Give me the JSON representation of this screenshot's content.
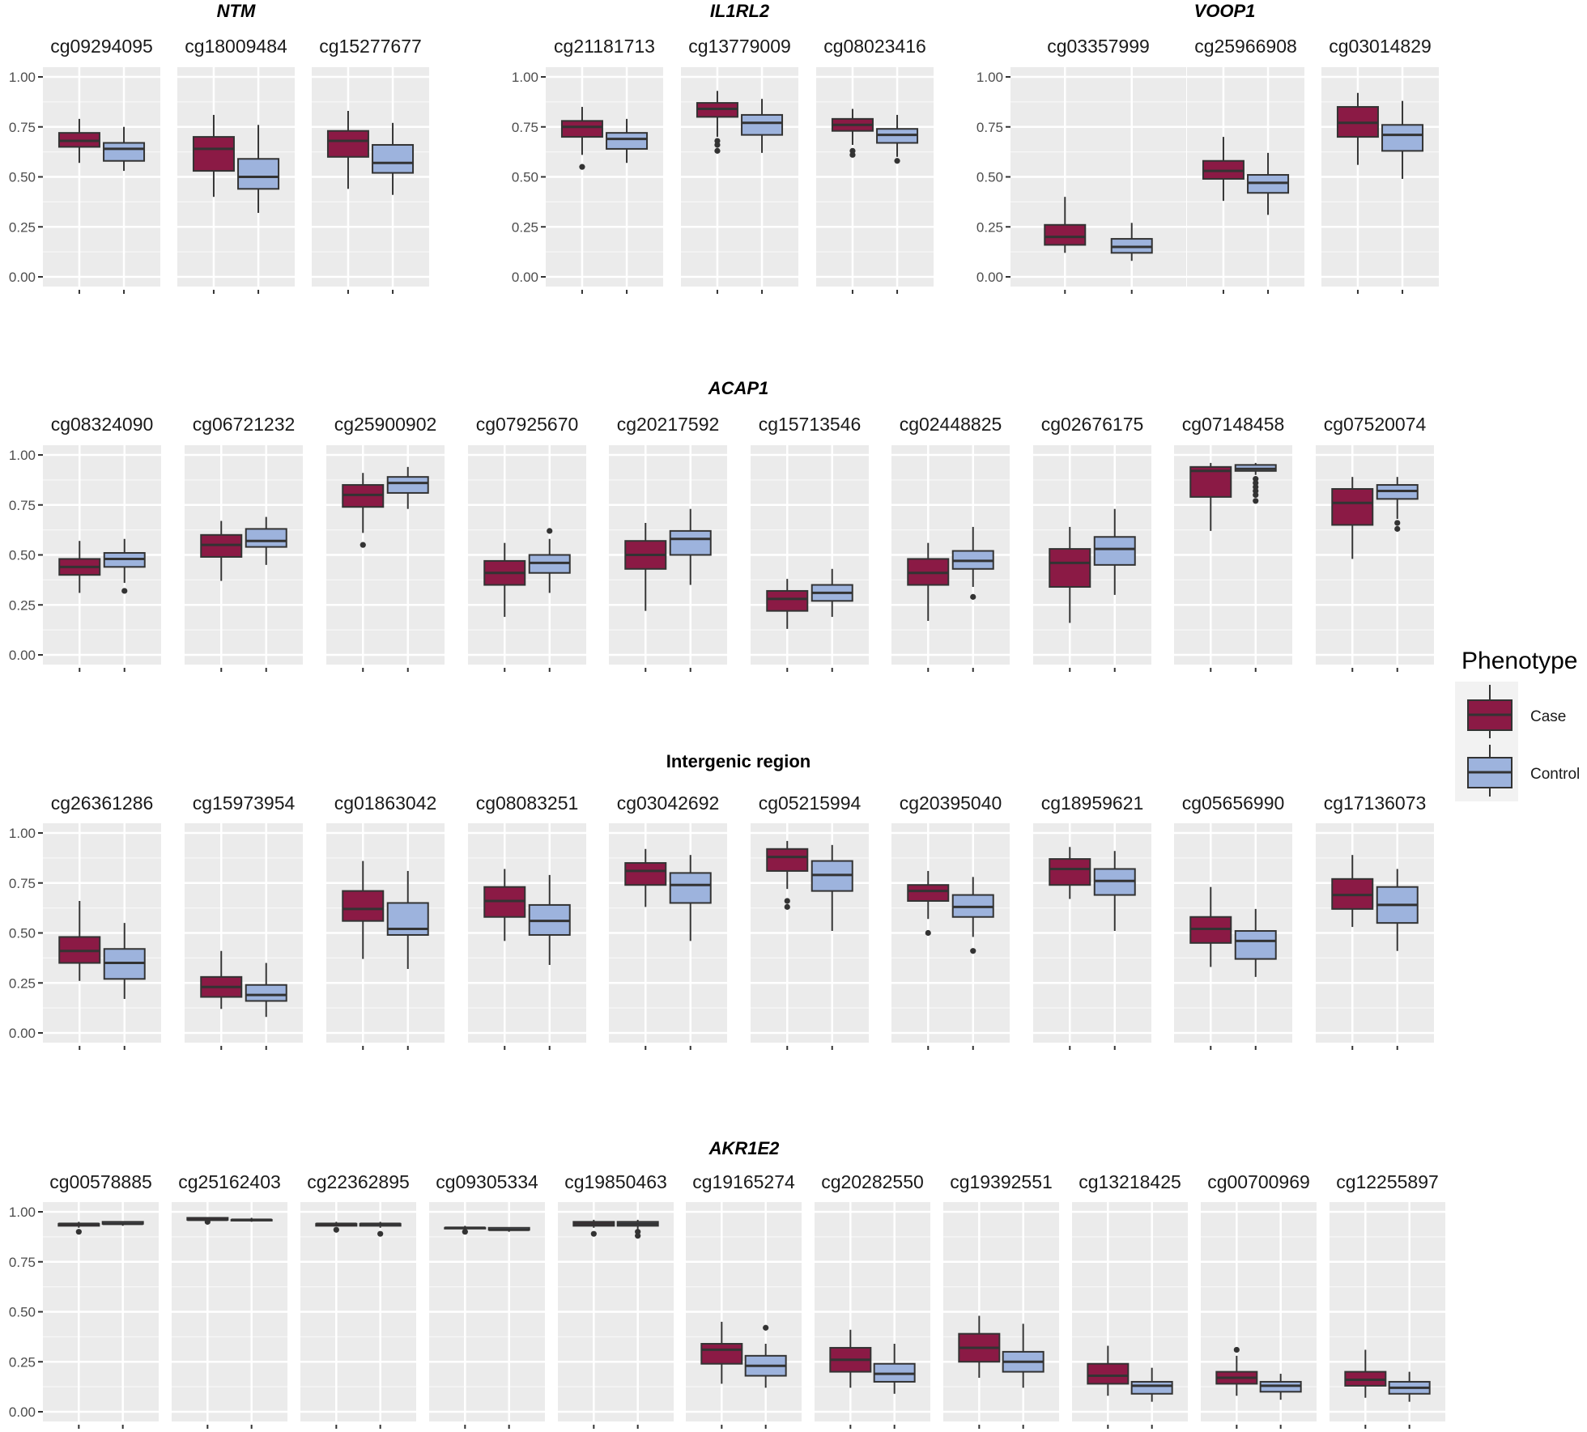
{
  "chart_data": {
    "type": "boxplot",
    "y_axis": {
      "range": [
        0,
        1
      ],
      "ticks": [
        "0.00",
        "0.25",
        "0.50",
        "0.75",
        "1.00"
      ]
    },
    "x_axis": {
      "tick_labels_shown": false
    },
    "legend": {
      "title": "Phenotype",
      "placement": "right",
      "entries": [
        {
          "label": "Case",
          "color": "#8b1a45"
        },
        {
          "label": "Control",
          "color": "#9db3dd"
        }
      ]
    },
    "groups": [
      {
        "title": "NTM",
        "italic": true,
        "panels": [
          {
            "probe": "cg09294095",
            "case": {
              "lw": 0.57,
              "q1": 0.65,
              "med": 0.68,
              "q3": 0.72,
              "uw": 0.79,
              "out": []
            },
            "control": {
              "lw": 0.53,
              "q1": 0.58,
              "med": 0.64,
              "q3": 0.67,
              "uw": 0.75,
              "out": []
            }
          },
          {
            "probe": "cg18009484",
            "case": {
              "lw": 0.4,
              "q1": 0.53,
              "med": 0.64,
              "q3": 0.7,
              "uw": 0.81,
              "out": []
            },
            "control": {
              "lw": 0.32,
              "q1": 0.44,
              "med": 0.5,
              "q3": 0.59,
              "uw": 0.76,
              "out": []
            }
          },
          {
            "probe": "cg15277677",
            "case": {
              "lw": 0.44,
              "q1": 0.6,
              "med": 0.68,
              "q3": 0.73,
              "uw": 0.83,
              "out": []
            },
            "control": {
              "lw": 0.41,
              "q1": 0.52,
              "med": 0.57,
              "q3": 0.66,
              "uw": 0.77,
              "out": []
            }
          }
        ]
      },
      {
        "title": "IL1RL2",
        "italic": true,
        "panels": [
          {
            "probe": "cg21181713",
            "case": {
              "lw": 0.61,
              "q1": 0.7,
              "med": 0.75,
              "q3": 0.78,
              "uw": 0.85,
              "out": [
                0.55
              ]
            },
            "control": {
              "lw": 0.57,
              "q1": 0.64,
              "med": 0.69,
              "q3": 0.72,
              "uw": 0.79,
              "out": []
            }
          },
          {
            "probe": "cg13779009",
            "case": {
              "lw": 0.7,
              "q1": 0.8,
              "med": 0.84,
              "q3": 0.87,
              "uw": 0.93,
              "out": [
                0.68,
                0.66,
                0.63
              ]
            },
            "control": {
              "lw": 0.62,
              "q1": 0.71,
              "med": 0.77,
              "q3": 0.81,
              "uw": 0.89,
              "out": []
            }
          },
          {
            "probe": "cg08023416",
            "case": {
              "lw": 0.66,
              "q1": 0.73,
              "med": 0.76,
              "q3": 0.79,
              "uw": 0.84,
              "out": [
                0.63,
                0.61
              ]
            },
            "control": {
              "lw": 0.6,
              "q1": 0.67,
              "med": 0.71,
              "q3": 0.74,
              "uw": 0.81,
              "out": [
                0.58
              ]
            }
          }
        ]
      },
      {
        "title": "VOOP1",
        "italic": true,
        "panels": [
          {
            "probe": "cg03357999",
            "case": {
              "lw": 0.12,
              "q1": 0.16,
              "med": 0.2,
              "q3": 0.26,
              "uw": 0.4,
              "out": []
            },
            "control": {
              "lw": 0.08,
              "q1": 0.12,
              "med": 0.15,
              "q3": 0.19,
              "uw": 0.27,
              "out": []
            }
          },
          {
            "probe": "cg25966908",
            "case": {
              "lw": 0.38,
              "q1": 0.49,
              "med": 0.53,
              "q3": 0.58,
              "uw": 0.7,
              "out": []
            },
            "control": {
              "lw": 0.31,
              "q1": 0.42,
              "med": 0.47,
              "q3": 0.51,
              "uw": 0.62,
              "out": []
            }
          },
          {
            "probe": "cg03014829",
            "case": {
              "lw": 0.56,
              "q1": 0.7,
              "med": 0.77,
              "q3": 0.85,
              "uw": 0.92,
              "out": []
            },
            "control": {
              "lw": 0.49,
              "q1": 0.63,
              "med": 0.71,
              "q3": 0.76,
              "uw": 0.88,
              "out": []
            }
          }
        ]
      },
      {
        "title": "ACAP1",
        "italic": true,
        "panels": [
          {
            "probe": "cg08324090",
            "case": {
              "lw": 0.31,
              "q1": 0.4,
              "med": 0.44,
              "q3": 0.48,
              "uw": 0.57,
              "out": []
            },
            "control": {
              "lw": 0.36,
              "q1": 0.44,
              "med": 0.48,
              "q3": 0.51,
              "uw": 0.58,
              "out": [
                0.32
              ]
            }
          },
          {
            "probe": "cg06721232",
            "case": {
              "lw": 0.37,
              "q1": 0.49,
              "med": 0.55,
              "q3": 0.6,
              "uw": 0.67,
              "out": []
            },
            "control": {
              "lw": 0.45,
              "q1": 0.54,
              "med": 0.57,
              "q3": 0.63,
              "uw": 0.69,
              "out": []
            }
          },
          {
            "probe": "cg25900902",
            "case": {
              "lw": 0.61,
              "q1": 0.74,
              "med": 0.8,
              "q3": 0.85,
              "uw": 0.91,
              "out": [
                0.55
              ]
            },
            "control": {
              "lw": 0.73,
              "q1": 0.81,
              "med": 0.86,
              "q3": 0.89,
              "uw": 0.94,
              "out": []
            }
          },
          {
            "probe": "cg07925670",
            "case": {
              "lw": 0.19,
              "q1": 0.35,
              "med": 0.41,
              "q3": 0.47,
              "uw": 0.56,
              "out": []
            },
            "control": {
              "lw": 0.31,
              "q1": 0.41,
              "med": 0.46,
              "q3": 0.5,
              "uw": 0.58,
              "out": [
                0.62
              ]
            }
          },
          {
            "probe": "cg20217592",
            "case": {
              "lw": 0.22,
              "q1": 0.43,
              "med": 0.5,
              "q3": 0.57,
              "uw": 0.66,
              "out": []
            },
            "control": {
              "lw": 0.35,
              "q1": 0.5,
              "med": 0.58,
              "q3": 0.62,
              "uw": 0.73,
              "out": []
            }
          },
          {
            "probe": "cg15713546",
            "case": {
              "lw": 0.13,
              "q1": 0.22,
              "med": 0.28,
              "q3": 0.32,
              "uw": 0.38,
              "out": []
            },
            "control": {
              "lw": 0.19,
              "q1": 0.27,
              "med": 0.31,
              "q3": 0.35,
              "uw": 0.43,
              "out": []
            }
          },
          {
            "probe": "cg02448825",
            "case": {
              "lw": 0.17,
              "q1": 0.35,
              "med": 0.41,
              "q3": 0.48,
              "uw": 0.56,
              "out": []
            },
            "control": {
              "lw": 0.34,
              "q1": 0.43,
              "med": 0.47,
              "q3": 0.52,
              "uw": 0.64,
              "out": [
                0.29
              ]
            }
          },
          {
            "probe": "cg02676175",
            "case": {
              "lw": 0.16,
              "q1": 0.34,
              "med": 0.46,
              "q3": 0.53,
              "uw": 0.64,
              "out": []
            },
            "control": {
              "lw": 0.3,
              "q1": 0.45,
              "med": 0.53,
              "q3": 0.59,
              "uw": 0.73,
              "out": []
            }
          },
          {
            "probe": "cg07148458",
            "case": {
              "lw": 0.62,
              "q1": 0.79,
              "med": 0.92,
              "q3": 0.94,
              "uw": 0.96,
              "out": []
            },
            "control": {
              "lw": 0.9,
              "q1": 0.92,
              "med": 0.93,
              "q3": 0.95,
              "uw": 0.96,
              "out": [
                0.88,
                0.86,
                0.84,
                0.82,
                0.8,
                0.77
              ]
            }
          },
          {
            "probe": "cg07520074",
            "case": {
              "lw": 0.48,
              "q1": 0.65,
              "med": 0.76,
              "q3": 0.83,
              "uw": 0.89,
              "out": []
            },
            "control": {
              "lw": 0.68,
              "q1": 0.78,
              "med": 0.82,
              "q3": 0.85,
              "uw": 0.89,
              "out": [
                0.66,
                0.63
              ]
            }
          }
        ]
      },
      {
        "title": "Intergenic region",
        "italic": false,
        "panels": [
          {
            "probe": "cg26361286",
            "case": {
              "lw": 0.26,
              "q1": 0.35,
              "med": 0.41,
              "q3": 0.48,
              "uw": 0.66,
              "out": []
            },
            "control": {
              "lw": 0.17,
              "q1": 0.27,
              "med": 0.35,
              "q3": 0.42,
              "uw": 0.55,
              "out": []
            }
          },
          {
            "probe": "cg15973954",
            "case": {
              "lw": 0.12,
              "q1": 0.18,
              "med": 0.23,
              "q3": 0.28,
              "uw": 0.41,
              "out": []
            },
            "control": {
              "lw": 0.08,
              "q1": 0.16,
              "med": 0.19,
              "q3": 0.24,
              "uw": 0.35,
              "out": []
            }
          },
          {
            "probe": "cg01863042",
            "case": {
              "lw": 0.37,
              "q1": 0.56,
              "med": 0.62,
              "q3": 0.71,
              "uw": 0.86,
              "out": []
            },
            "control": {
              "lw": 0.32,
              "q1": 0.49,
              "med": 0.52,
              "q3": 0.65,
              "uw": 0.81,
              "out": []
            }
          },
          {
            "probe": "cg08083251",
            "case": {
              "lw": 0.46,
              "q1": 0.58,
              "med": 0.66,
              "q3": 0.73,
              "uw": 0.82,
              "out": []
            },
            "control": {
              "lw": 0.34,
              "q1": 0.49,
              "med": 0.56,
              "q3": 0.64,
              "uw": 0.79,
              "out": []
            }
          },
          {
            "probe": "cg03042692",
            "case": {
              "lw": 0.63,
              "q1": 0.74,
              "med": 0.81,
              "q3": 0.85,
              "uw": 0.92,
              "out": []
            },
            "control": {
              "lw": 0.46,
              "q1": 0.65,
              "med": 0.74,
              "q3": 0.8,
              "uw": 0.89,
              "out": []
            }
          },
          {
            "probe": "cg05215994",
            "case": {
              "lw": 0.72,
              "q1": 0.81,
              "med": 0.88,
              "q3": 0.92,
              "uw": 0.96,
              "out": [
                0.66,
                0.63
              ]
            },
            "control": {
              "lw": 0.51,
              "q1": 0.71,
              "med": 0.79,
              "q3": 0.86,
              "uw": 0.94,
              "out": []
            }
          },
          {
            "probe": "cg20395040",
            "case": {
              "lw": 0.57,
              "q1": 0.66,
              "med": 0.71,
              "q3": 0.74,
              "uw": 0.81,
              "out": [
                0.5
              ]
            },
            "control": {
              "lw": 0.48,
              "q1": 0.58,
              "med": 0.63,
              "q3": 0.69,
              "uw": 0.78,
              "out": [
                0.41
              ]
            }
          },
          {
            "probe": "cg18959621",
            "case": {
              "lw": 0.67,
              "q1": 0.74,
              "med": 0.82,
              "q3": 0.87,
              "uw": 0.93,
              "out": []
            },
            "control": {
              "lw": 0.51,
              "q1": 0.69,
              "med": 0.76,
              "q3": 0.82,
              "uw": 0.91,
              "out": []
            }
          },
          {
            "probe": "cg05656990",
            "case": {
              "lw": 0.33,
              "q1": 0.45,
              "med": 0.52,
              "q3": 0.58,
              "uw": 0.73,
              "out": []
            },
            "control": {
              "lw": 0.28,
              "q1": 0.37,
              "med": 0.46,
              "q3": 0.51,
              "uw": 0.62,
              "out": []
            }
          },
          {
            "probe": "cg17136073",
            "case": {
              "lw": 0.53,
              "q1": 0.62,
              "med": 0.69,
              "q3": 0.77,
              "uw": 0.89,
              "out": []
            },
            "control": {
              "lw": 0.41,
              "q1": 0.55,
              "med": 0.64,
              "q3": 0.73,
              "uw": 0.82,
              "out": []
            }
          }
        ]
      },
      {
        "title": "AKR1E2",
        "italic": true,
        "panels": [
          {
            "probe": "cg00578885",
            "case": {
              "lw": 0.92,
              "q1": 0.93,
              "med": 0.94,
              "q3": 0.94,
              "uw": 0.95,
              "out": [
                0.9
              ]
            },
            "control": {
              "lw": 0.93,
              "q1": 0.94,
              "med": 0.94,
              "q3": 0.95,
              "uw": 0.95,
              "out": []
            }
          },
          {
            "probe": "cg25162403",
            "case": {
              "lw": 0.96,
              "q1": 0.96,
              "med": 0.96,
              "q3": 0.97,
              "uw": 0.97,
              "out": [
                0.95
              ]
            },
            "control": {
              "lw": 0.95,
              "q1": 0.96,
              "med": 0.96,
              "q3": 0.96,
              "uw": 0.97,
              "out": []
            }
          },
          {
            "probe": "cg22362895",
            "case": {
              "lw": 0.93,
              "q1": 0.93,
              "med": 0.94,
              "q3": 0.94,
              "uw": 0.95,
              "out": [
                0.91
              ]
            },
            "control": {
              "lw": 0.92,
              "q1": 0.93,
              "med": 0.94,
              "q3": 0.94,
              "uw": 0.95,
              "out": [
                0.89
              ]
            }
          },
          {
            "probe": "cg09305334",
            "case": {
              "lw": 0.91,
              "q1": 0.92,
              "med": 0.92,
              "q3": 0.92,
              "uw": 0.93,
              "out": [
                0.9
              ]
            },
            "control": {
              "lw": 0.9,
              "q1": 0.91,
              "med": 0.91,
              "q3": 0.92,
              "uw": 0.92,
              "out": []
            }
          },
          {
            "probe": "cg19850463",
            "case": {
              "lw": 0.92,
              "q1": 0.93,
              "med": 0.94,
              "q3": 0.95,
              "uw": 0.96,
              "out": [
                0.89
              ]
            },
            "control": {
              "lw": 0.91,
              "q1": 0.93,
              "med": 0.94,
              "q3": 0.95,
              "uw": 0.96,
              "out": [
                0.9,
                0.88
              ]
            }
          },
          {
            "probe": "cg19165274",
            "case": {
              "lw": 0.14,
              "q1": 0.24,
              "med": 0.31,
              "q3": 0.34,
              "uw": 0.45,
              "out": []
            },
            "control": {
              "lw": 0.12,
              "q1": 0.18,
              "med": 0.23,
              "q3": 0.28,
              "uw": 0.34,
              "out": [
                0.42
              ]
            }
          },
          {
            "probe": "cg20282550",
            "case": {
              "lw": 0.12,
              "q1": 0.2,
              "med": 0.26,
              "q3": 0.32,
              "uw": 0.41,
              "out": []
            },
            "control": {
              "lw": 0.09,
              "q1": 0.15,
              "med": 0.19,
              "q3": 0.24,
              "uw": 0.34,
              "out": []
            }
          },
          {
            "probe": "cg19392551",
            "case": {
              "lw": 0.17,
              "q1": 0.25,
              "med": 0.32,
              "q3": 0.39,
              "uw": 0.48,
              "out": []
            },
            "control": {
              "lw": 0.12,
              "q1": 0.2,
              "med": 0.25,
              "q3": 0.3,
              "uw": 0.44,
              "out": []
            }
          },
          {
            "probe": "cg13218425",
            "case": {
              "lw": 0.08,
              "q1": 0.14,
              "med": 0.18,
              "q3": 0.24,
              "uw": 0.33,
              "out": []
            },
            "control": {
              "lw": 0.05,
              "q1": 0.09,
              "med": 0.13,
              "q3": 0.15,
              "uw": 0.22,
              "out": []
            }
          },
          {
            "probe": "cg00700969",
            "case": {
              "lw": 0.08,
              "q1": 0.14,
              "med": 0.17,
              "q3": 0.2,
              "uw": 0.28,
              "out": [
                0.31
              ]
            },
            "control": {
              "lw": 0.06,
              "q1": 0.1,
              "med": 0.13,
              "q3": 0.15,
              "uw": 0.19,
              "out": []
            }
          },
          {
            "probe": "cg12255897",
            "case": {
              "lw": 0.07,
              "q1": 0.13,
              "med": 0.16,
              "q3": 0.2,
              "uw": 0.31,
              "out": []
            },
            "control": {
              "lw": 0.05,
              "q1": 0.09,
              "med": 0.12,
              "q3": 0.15,
              "uw": 0.2,
              "out": []
            }
          }
        ]
      }
    ]
  }
}
